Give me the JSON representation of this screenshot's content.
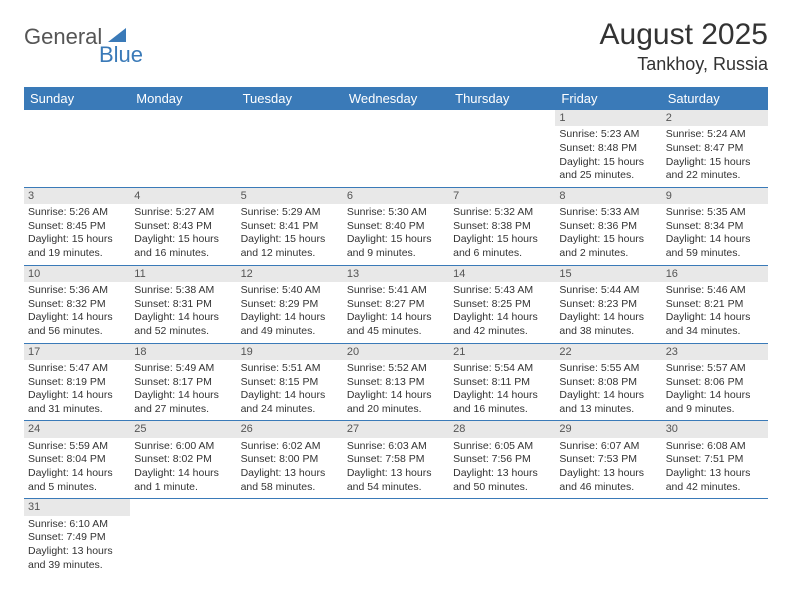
{
  "logo": {
    "part1": "General",
    "part2": "Blue"
  },
  "title": "August 2025",
  "location": "Tankhoy, Russia",
  "colors": {
    "header_bg": "#3a7ab8",
    "header_fg": "#ffffff",
    "daynum_bg": "#e8e8e8",
    "row_border": "#3a7ab8",
    "text": "#333333",
    "background": "#ffffff"
  },
  "dayNames": [
    "Sunday",
    "Monday",
    "Tuesday",
    "Wednesday",
    "Thursday",
    "Friday",
    "Saturday"
  ],
  "weeks": [
    [
      null,
      null,
      null,
      null,
      null,
      {
        "d": "1",
        "sr": "5:23 AM",
        "ss": "8:48 PM",
        "dl": "15 hours and 25 minutes."
      },
      {
        "d": "2",
        "sr": "5:24 AM",
        "ss": "8:47 PM",
        "dl": "15 hours and 22 minutes."
      }
    ],
    [
      {
        "d": "3",
        "sr": "5:26 AM",
        "ss": "8:45 PM",
        "dl": "15 hours and 19 minutes."
      },
      {
        "d": "4",
        "sr": "5:27 AM",
        "ss": "8:43 PM",
        "dl": "15 hours and 16 minutes."
      },
      {
        "d": "5",
        "sr": "5:29 AM",
        "ss": "8:41 PM",
        "dl": "15 hours and 12 minutes."
      },
      {
        "d": "6",
        "sr": "5:30 AM",
        "ss": "8:40 PM",
        "dl": "15 hours and 9 minutes."
      },
      {
        "d": "7",
        "sr": "5:32 AM",
        "ss": "8:38 PM",
        "dl": "15 hours and 6 minutes."
      },
      {
        "d": "8",
        "sr": "5:33 AM",
        "ss": "8:36 PM",
        "dl": "15 hours and 2 minutes."
      },
      {
        "d": "9",
        "sr": "5:35 AM",
        "ss": "8:34 PM",
        "dl": "14 hours and 59 minutes."
      }
    ],
    [
      {
        "d": "10",
        "sr": "5:36 AM",
        "ss": "8:32 PM",
        "dl": "14 hours and 56 minutes."
      },
      {
        "d": "11",
        "sr": "5:38 AM",
        "ss": "8:31 PM",
        "dl": "14 hours and 52 minutes."
      },
      {
        "d": "12",
        "sr": "5:40 AM",
        "ss": "8:29 PM",
        "dl": "14 hours and 49 minutes."
      },
      {
        "d": "13",
        "sr": "5:41 AM",
        "ss": "8:27 PM",
        "dl": "14 hours and 45 minutes."
      },
      {
        "d": "14",
        "sr": "5:43 AM",
        "ss": "8:25 PM",
        "dl": "14 hours and 42 minutes."
      },
      {
        "d": "15",
        "sr": "5:44 AM",
        "ss": "8:23 PM",
        "dl": "14 hours and 38 minutes."
      },
      {
        "d": "16",
        "sr": "5:46 AM",
        "ss": "8:21 PM",
        "dl": "14 hours and 34 minutes."
      }
    ],
    [
      {
        "d": "17",
        "sr": "5:47 AM",
        "ss": "8:19 PM",
        "dl": "14 hours and 31 minutes."
      },
      {
        "d": "18",
        "sr": "5:49 AM",
        "ss": "8:17 PM",
        "dl": "14 hours and 27 minutes."
      },
      {
        "d": "19",
        "sr": "5:51 AM",
        "ss": "8:15 PM",
        "dl": "14 hours and 24 minutes."
      },
      {
        "d": "20",
        "sr": "5:52 AM",
        "ss": "8:13 PM",
        "dl": "14 hours and 20 minutes."
      },
      {
        "d": "21",
        "sr": "5:54 AM",
        "ss": "8:11 PM",
        "dl": "14 hours and 16 minutes."
      },
      {
        "d": "22",
        "sr": "5:55 AM",
        "ss": "8:08 PM",
        "dl": "14 hours and 13 minutes."
      },
      {
        "d": "23",
        "sr": "5:57 AM",
        "ss": "8:06 PM",
        "dl": "14 hours and 9 minutes."
      }
    ],
    [
      {
        "d": "24",
        "sr": "5:59 AM",
        "ss": "8:04 PM",
        "dl": "14 hours and 5 minutes."
      },
      {
        "d": "25",
        "sr": "6:00 AM",
        "ss": "8:02 PM",
        "dl": "14 hours and 1 minute."
      },
      {
        "d": "26",
        "sr": "6:02 AM",
        "ss": "8:00 PM",
        "dl": "13 hours and 58 minutes."
      },
      {
        "d": "27",
        "sr": "6:03 AM",
        "ss": "7:58 PM",
        "dl": "13 hours and 54 minutes."
      },
      {
        "d": "28",
        "sr": "6:05 AM",
        "ss": "7:56 PM",
        "dl": "13 hours and 50 minutes."
      },
      {
        "d": "29",
        "sr": "6:07 AM",
        "ss": "7:53 PM",
        "dl": "13 hours and 46 minutes."
      },
      {
        "d": "30",
        "sr": "6:08 AM",
        "ss": "7:51 PM",
        "dl": "13 hours and 42 minutes."
      }
    ],
    [
      {
        "d": "31",
        "sr": "6:10 AM",
        "ss": "7:49 PM",
        "dl": "13 hours and 39 minutes."
      },
      null,
      null,
      null,
      null,
      null,
      null
    ]
  ],
  "labels": {
    "sunrise": "Sunrise:",
    "sunset": "Sunset:",
    "daylight": "Daylight:"
  }
}
